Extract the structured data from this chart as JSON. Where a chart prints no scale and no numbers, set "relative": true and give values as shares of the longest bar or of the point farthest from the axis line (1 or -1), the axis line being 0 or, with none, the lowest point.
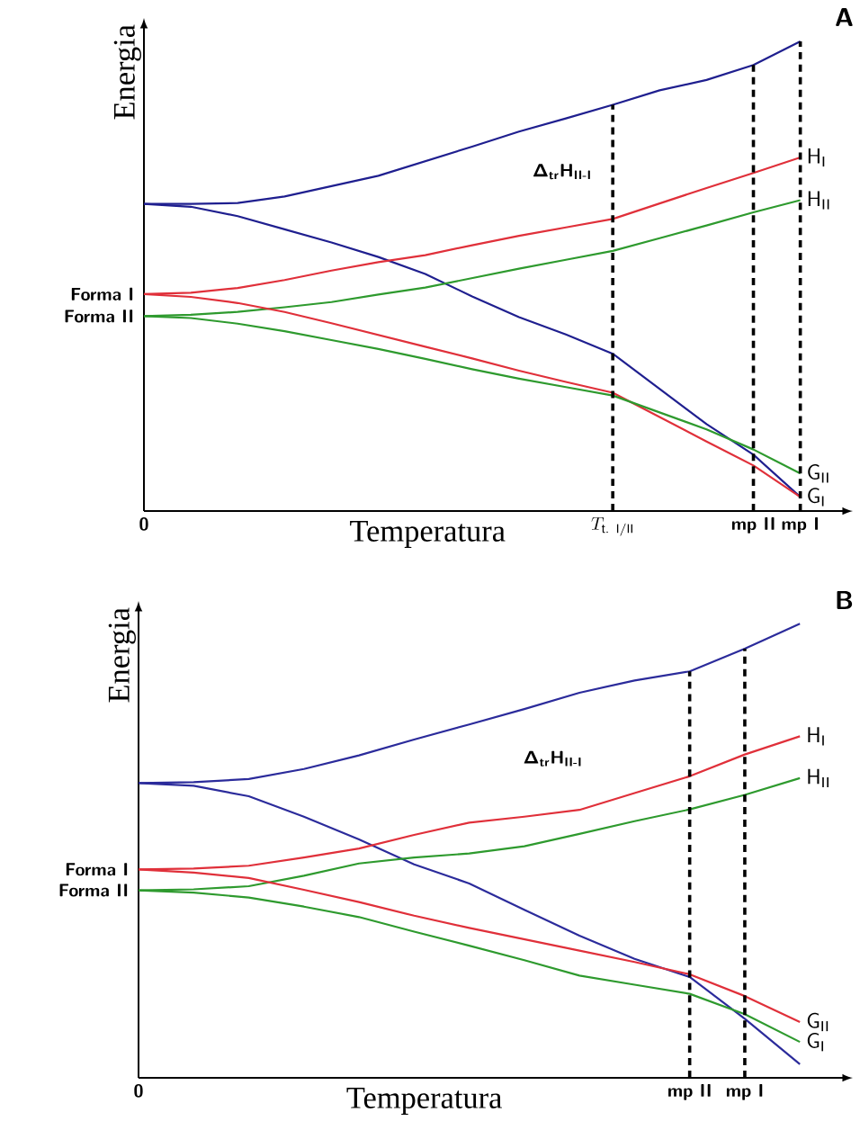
{
  "chart_data": [
    {
      "type": "line",
      "title": "A",
      "xlabel": "Temperatura",
      "ylabel": "Energia",
      "relative": true,
      "tick_labels": "x",
      "categories": [
        "0",
        null,
        null,
        null,
        null,
        null,
        null,
        null,
        null,
        null,
        "T_{\\mathrm{t.\\ I/II}}",
        null,
        null,
        "mp II",
        "mp I"
      ],
      "series": [
        {
          "color": "#1f1f8f",
          "line_style": "solid",
          "values": [
            0.654,
            0.654,
            0.656,
            0.67,
            0.692,
            0.714,
            0.745,
            0.776,
            0.808,
            0.836,
            0.865,
            0.896,
            0.918,
            0.95,
            1.0
          ]
        },
        {
          "color": "#1f1f8f",
          "line_style": "solid",
          "values": [
            0.654,
            0.648,
            0.628,
            0.6,
            0.572,
            0.541,
            0.505,
            0.457,
            0.413,
            0.376,
            0.335,
            0.26,
            0.185,
            0.12,
            0.03
          ]
        },
        {
          "name": "H$_{I}$",
          "color": "#e0303a",
          "line_style": "solid",
          "values": [
            0.462,
            0.465,
            0.475,
            0.492,
            0.512,
            0.53,
            0.545,
            0.566,
            0.586,
            0.604,
            0.622,
            0.655,
            0.688,
            0.72,
            0.753
          ]
        },
        {
          "name": "H$_{II}$",
          "color": "#2e9a2e",
          "line_style": "solid",
          "values": [
            0.415,
            0.418,
            0.424,
            0.434,
            0.445,
            0.461,
            0.476,
            0.496,
            0.516,
            0.535,
            0.554,
            0.581,
            0.608,
            0.636,
            0.662
          ]
        },
        {
          "name": "G$_{I}$",
          "color": "#e0303a",
          "line_style": "solid",
          "values": [
            0.462,
            0.456,
            0.443,
            0.424,
            0.4,
            0.375,
            0.35,
            0.325,
            0.299,
            0.275,
            0.252,
            0.2,
            0.148,
            0.097,
            0.03
          ]
        },
        {
          "name": "G$_{II}$",
          "color": "#2e9a2e",
          "line_style": "solid",
          "values": [
            0.415,
            0.411,
            0.399,
            0.383,
            0.364,
            0.345,
            0.324,
            0.302,
            0.282,
            0.264,
            0.246,
            0.21,
            0.174,
            0.131,
            0.08
          ]
        }
      ],
      "ref_lines": [
        {
          "axis": "x",
          "value": "T_{\\mathrm{t.\\ I/II}}",
          "color": "#000000",
          "line_style": "dashed"
        },
        {
          "axis": "x",
          "value": "mp II",
          "color": "#000000",
          "line_style": "dashed"
        },
        {
          "axis": "x",
          "value": "mp I",
          "color": "#000000",
          "line_style": "dashed"
        }
      ],
      "annotations": [
        {
          "text": "Forma I",
          "x": "0",
          "y": 0.462
        },
        {
          "text": "Forma II",
          "x": "0",
          "y": 0.415
        },
        "Δ$_{tr}$H$_{II-I}$"
      ]
    },
    {
      "type": "line",
      "title": "B",
      "xlabel": "Temperatura",
      "ylabel": "Energia",
      "relative": true,
      "tick_labels": "x",
      "categories": [
        "0",
        null,
        null,
        null,
        null,
        null,
        null,
        null,
        null,
        null,
        "mp II",
        "mp I",
        null
      ],
      "series": [
        {
          "color": "#2b2b9b",
          "line_style": "solid",
          "values": [
            0.649,
            0.651,
            0.658,
            0.68,
            0.71,
            0.745,
            0.778,
            0.812,
            0.848,
            0.875,
            0.895,
            0.945,
            1.0
          ]
        },
        {
          "color": "#2b2b9b",
          "line_style": "solid",
          "values": [
            0.649,
            0.643,
            0.62,
            0.575,
            0.525,
            0.47,
            0.428,
            0.37,
            0.313,
            0.262,
            0.222,
            0.13,
            0.03
          ]
        },
        {
          "name": "H$_{I}$",
          "color": "#e0303a",
          "line_style": "solid",
          "values": [
            0.459,
            0.461,
            0.467,
            0.485,
            0.505,
            0.535,
            0.562,
            0.575,
            0.59,
            0.627,
            0.664,
            0.712,
            0.752
          ]
        },
        {
          "name": "H$_{II}$",
          "color": "#2e9a2e",
          "line_style": "solid",
          "values": [
            0.413,
            0.415,
            0.422,
            0.445,
            0.472,
            0.485,
            0.494,
            0.51,
            0.537,
            0.565,
            0.591,
            0.623,
            0.66
          ]
        },
        {
          "name": "G$_{II}$",
          "color": "#e0303a",
          "line_style": "solid",
          "values": [
            0.459,
            0.452,
            0.44,
            0.414,
            0.387,
            0.357,
            0.33,
            0.305,
            0.28,
            0.255,
            0.228,
            0.18,
            0.123
          ]
        },
        {
          "name": "G$_{I}$",
          "color": "#2e9a2e",
          "line_style": "solid",
          "values": [
            0.413,
            0.408,
            0.397,
            0.377,
            0.354,
            0.322,
            0.291,
            0.259,
            0.225,
            0.205,
            0.185,
            0.14,
            0.079
          ]
        }
      ],
      "ref_lines": [
        {
          "axis": "x",
          "value": "mp II",
          "color": "#000000",
          "line_style": "dashed"
        },
        {
          "axis": "x",
          "value": "mp I",
          "color": "#000000",
          "line_style": "dashed"
        }
      ],
      "annotations": [
        {
          "text": "Forma I",
          "x": "0",
          "y": 0.459
        },
        {
          "text": "Forma II",
          "x": "0",
          "y": 0.413
        },
        "Δ$_{tr}$H$_{II-I}$"
      ]
    }
  ]
}
